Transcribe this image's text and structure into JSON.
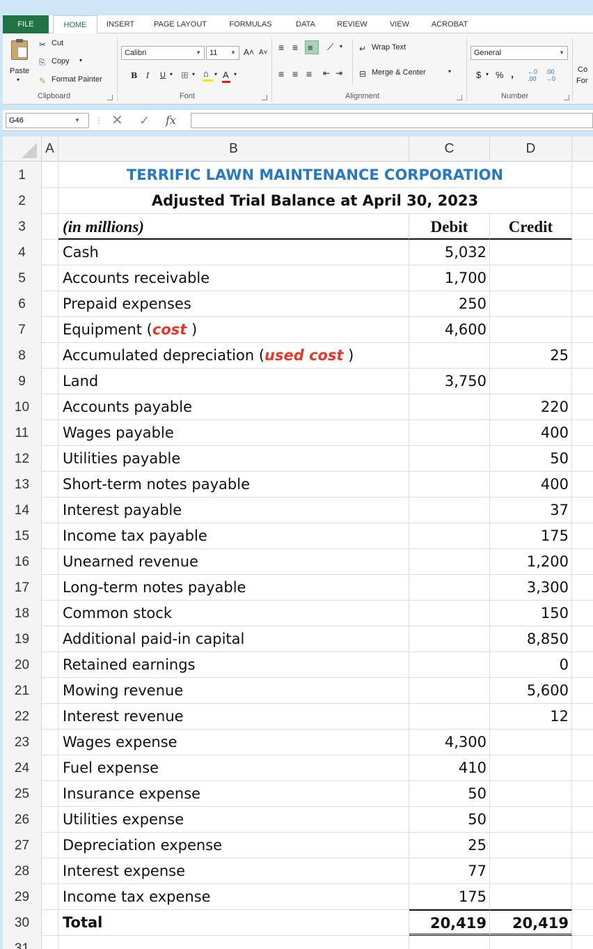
{
  "ribbon": {
    "tabs": [
      "FILE",
      "HOME",
      "INSERT",
      "PAGE LAYOUT",
      "FORMULAS",
      "DATA",
      "REVIEW",
      "VIEW",
      "ACROBAT"
    ],
    "active_tab": "HOME",
    "clipboard": {
      "paste": "Paste",
      "cut": "Cut",
      "copy": "Copy",
      "format_painter": "Format Painter",
      "label": "Clipboard"
    },
    "font": {
      "name": "Calibri",
      "size": "11",
      "label": "Font",
      "bold": "B",
      "italic": "I",
      "underline": "U"
    },
    "alignment": {
      "wrap_text": "Wrap Text",
      "merge_center": "Merge & Center",
      "label": "Alignment"
    },
    "number": {
      "format": "General",
      "currency": "$",
      "percent": "%",
      "comma": ",",
      "label": "Number"
    },
    "cut_off": {
      "top": "Co",
      "bottom": "For"
    }
  },
  "formula_bar": {
    "name_box": "G46",
    "fx": "fx",
    "value": ""
  },
  "grid": {
    "columns": [
      "A",
      "B",
      "C",
      "D"
    ],
    "title": "TERRIFIC LAWN MAINTENANCE CORPORATION",
    "subtitle": "Adjusted Trial Balance at April 30, 2023",
    "units": "(in millions)",
    "debit_header": "Debit",
    "credit_header": "Credit",
    "row_numbers": [
      "1",
      "2",
      "3",
      "4",
      "5",
      "6",
      "7",
      "8",
      "9",
      "10",
      "11",
      "12",
      "13",
      "14",
      "15",
      "16",
      "17",
      "18",
      "19",
      "20",
      "21",
      "22",
      "23",
      "24",
      "25",
      "26",
      "27",
      "28",
      "29",
      "30",
      "31"
    ],
    "accounts": [
      {
        "name": "Cash",
        "debit": "5,032",
        "credit": ""
      },
      {
        "name": "Accounts receivable",
        "debit": "1,700",
        "credit": ""
      },
      {
        "name": "Prepaid expenses",
        "debit": "250",
        "credit": ""
      },
      {
        "name": "Equipment (",
        "note": "cost",
        "suffix": " )",
        "debit": "4,600",
        "credit": ""
      },
      {
        "name": "Accumulated depreciation (",
        "note": "used cost",
        "suffix": " )",
        "debit": "",
        "credit": "25"
      },
      {
        "name": "Land",
        "debit": "3,750",
        "credit": ""
      },
      {
        "name": "Accounts payable",
        "debit": "",
        "credit": "220"
      },
      {
        "name": "Wages payable",
        "debit": "",
        "credit": "400"
      },
      {
        "name": "Utilities payable",
        "debit": "",
        "credit": "50"
      },
      {
        "name": "Short-term notes payable",
        "debit": "",
        "credit": "400"
      },
      {
        "name": "Interest payable",
        "debit": "",
        "credit": "37"
      },
      {
        "name": "Income tax payable",
        "debit": "",
        "credit": "175"
      },
      {
        "name": "Unearned revenue",
        "debit": "",
        "credit": "1,200"
      },
      {
        "name": "Long-term notes payable",
        "debit": "",
        "credit": "3,300"
      },
      {
        "name": "Common stock",
        "debit": "",
        "credit": "150"
      },
      {
        "name": "Additional paid-in capital",
        "debit": "",
        "credit": "8,850"
      },
      {
        "name": "Retained earnings",
        "debit": "",
        "credit": "0"
      },
      {
        "name": "Mowing revenue",
        "debit": "",
        "credit": "5,600"
      },
      {
        "name": "Interest revenue",
        "debit": "",
        "credit": "12"
      },
      {
        "name": "Wages expense",
        "debit": "4,300",
        "credit": ""
      },
      {
        "name": "Fuel expense",
        "debit": "410",
        "credit": ""
      },
      {
        "name": "Insurance expense",
        "debit": "50",
        "credit": ""
      },
      {
        "name": "Utilities expense",
        "debit": "50",
        "credit": ""
      },
      {
        "name": "Depreciation expense",
        "debit": "25",
        "credit": ""
      },
      {
        "name": "Interest expense",
        "debit": "77",
        "credit": ""
      },
      {
        "name": "Income tax expense",
        "debit": "175",
        "credit": ""
      }
    ],
    "total": {
      "label": "Total",
      "debit": "20,419",
      "credit": "20,419"
    }
  },
  "colors": {
    "excel_green": "#217346",
    "title_blue": "#2a78c0",
    "note_red": "#e23a2a",
    "frame_blue": "#cfe6f6"
  }
}
